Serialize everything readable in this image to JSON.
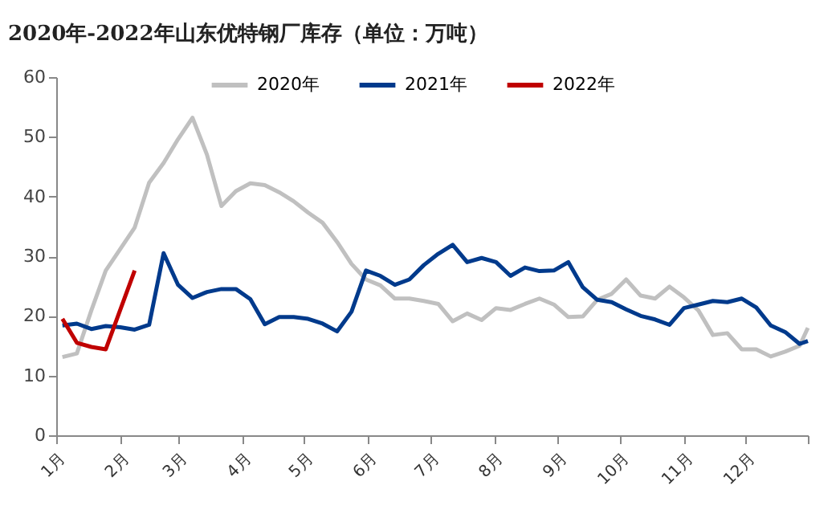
{
  "chart_data": {
    "type": "line",
    "title": "2020年-2022年山东优特钢厂库存（单位：万吨）",
    "x": [
      "--01-04",
      "--01-11",
      "--01-18",
      "--01-25",
      "--02-01",
      "--02-08",
      "--02-15",
      "--02-22",
      "--03-01",
      "--03-08",
      "--03-15",
      "--03-22",
      "--03-29",
      "--04-05",
      "--04-12",
      "--04-19",
      "--04-26",
      "--05-03",
      "--05-10",
      "--05-17",
      "--05-24",
      "--05-31",
      "--06-07",
      "--06-14",
      "--06-21",
      "--06-28",
      "--07-05",
      "--07-12",
      "--07-19",
      "--07-26",
      "--08-02",
      "--08-09",
      "--08-16",
      "--08-23",
      "--08-30",
      "--09-06",
      "--09-13",
      "--09-20",
      "--09-27",
      "--10-04",
      "--10-11",
      "--10-18",
      "--10-25",
      "--11-01",
      "--11-08",
      "--11-15",
      "--11-22",
      "--11-29",
      "--12-06",
      "--12-13",
      "--12-20",
      "--12-27",
      "--12-31"
    ],
    "series": [
      {
        "name": "2020年",
        "color": "#c0c0c0",
        "values": [
          13.1,
          13.7,
          20.9,
          27.6,
          31.2,
          34.8,
          42.3,
          45.6,
          49.6,
          53.2,
          47,
          38.4,
          40.9,
          42.2,
          41.9,
          40.7,
          39.2,
          37.3,
          35.6,
          32.4,
          28.7,
          26.1,
          25.1,
          22.9,
          22.9,
          22.5,
          22.0,
          19.1,
          20.4,
          19.3,
          21.3,
          21.0,
          22.0,
          22.9,
          21.9,
          19.8,
          19.9,
          22.7,
          23.7,
          26.1,
          23.4,
          22.9,
          24.9,
          23.1,
          20.9,
          16.8,
          17.1,
          14.4,
          14.4,
          13.2,
          14.0,
          15.0,
          18.0
        ]
      },
      {
        "name": "2021年",
        "color": "#003a8c",
        "values": [
          18.4,
          18.7,
          17.8,
          18.3,
          18.1,
          17.7,
          18.5,
          30.5,
          25.2,
          23.0,
          24.0,
          24.5,
          24.5,
          22.8,
          18.6,
          19.8,
          19.8,
          19.5,
          18.7,
          17.4,
          20.7,
          27.6,
          26.7,
          25.2,
          26.1,
          28.5,
          30.4,
          31.9,
          29.0,
          29.7,
          29.0,
          26.7,
          28.1,
          27.5,
          27.6,
          29.0,
          24.8,
          22.7,
          22.3,
          21.1,
          20.0,
          19.4,
          18.5,
          21.3,
          21.9,
          22.5,
          22.3,
          22.9,
          21.4,
          18.4,
          17.3,
          15.3,
          15.8
        ]
      },
      {
        "name": "2022年",
        "color": "#c00000",
        "x": [
          "--01-04",
          "--01-11",
          "--01-18",
          "--01-25",
          "--02-08"
        ],
        "values": [
          19.5,
          15.5,
          14.8,
          14.4,
          27.6
        ]
      }
    ],
    "xlim": [
      "--01-01",
      "--12-31"
    ],
    "xticks": [
      {
        "value": "--01-01",
        "label": "1月"
      },
      {
        "value": "--02-01",
        "label": "2月"
      },
      {
        "value": "--03-01",
        "label": "3月"
      },
      {
        "value": "--04-01",
        "label": "4月"
      },
      {
        "value": "--05-01",
        "label": "5月"
      },
      {
        "value": "--06-01",
        "label": "6月"
      },
      {
        "value": "--07-01",
        "label": "7月"
      },
      {
        "value": "--08-01",
        "label": "8月"
      },
      {
        "value": "--09-01",
        "label": "9月"
      },
      {
        "value": "--10-01",
        "label": "10月"
      },
      {
        "value": "--11-01",
        "label": "11月"
      },
      {
        "value": "--12-01",
        "label": "12月"
      },
      {
        "value": "--12-31",
        "label": null
      }
    ],
    "ylim": [
      0,
      60
    ],
    "yticks": [
      0,
      10,
      20,
      30,
      40,
      50,
      60
    ],
    "legend": "top right",
    "grid": false
  }
}
